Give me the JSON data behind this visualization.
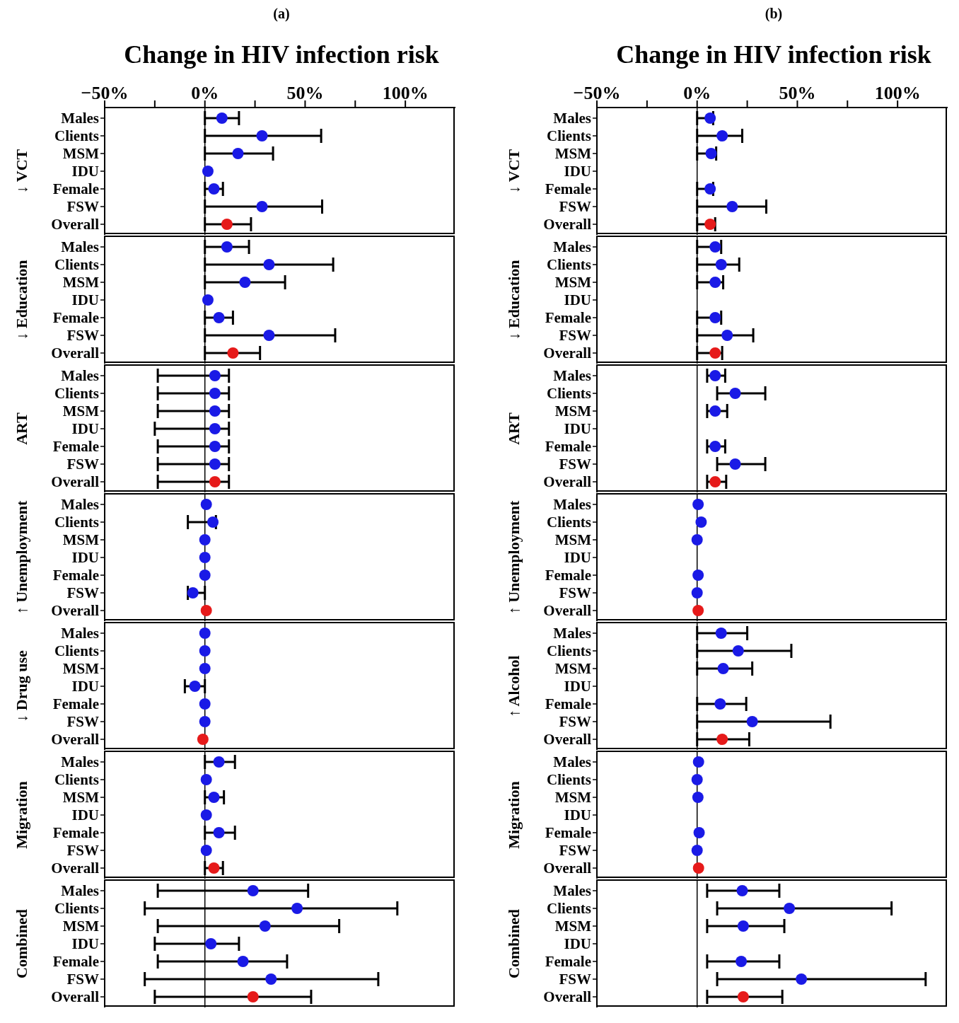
{
  "chart_data": [
    {
      "type": "scatter",
      "orientation": "horizontal",
      "title": "(a)",
      "xlabel": "Change in HIV infection risk",
      "ylabel": "↓ VCT",
      "marker": "circle",
      "categories": [
        "Males",
        "Clients",
        "MSM",
        "IDU",
        "Female",
        "FSW",
        "Overall"
      ],
      "values": [
        8.5,
        28.5,
        16.5,
        1.5,
        4.5,
        28.5,
        11
      ],
      "errors": [
        [
          0,
          17
        ],
        [
          0,
          58
        ],
        [
          0,
          34
        ],
        null,
        [
          0,
          9
        ],
        [
          0,
          58.5
        ],
        [
          0,
          23
        ]
      ],
      "colors": [
        "#1a1ae6",
        "#1a1ae6",
        "#1a1ae6",
        "#1a1ae6",
        "#1a1ae6",
        "#1a1ae6",
        "#e61a1a"
      ],
      "xlim": [
        -50,
        125
      ],
      "xticks": [
        {
          "value": -50,
          "label": "−50%"
        },
        {
          "value": -25,
          "label": null
        },
        {
          "value": 0,
          "label": "0%"
        },
        {
          "value": 25,
          "label": null
        },
        {
          "value": 50,
          "label": "50%"
        },
        {
          "value": 75,
          "label": null
        },
        {
          "value": 100,
          "label": "100%"
        }
      ],
      "ref_lines": [
        {
          "axis": "x",
          "value": 0
        }
      ]
    },
    {
      "type": "scatter",
      "orientation": "horizontal",
      "ylabel": "↓ Education",
      "marker": "circle",
      "tick_labels": "y",
      "categories": [
        "Males",
        "Clients",
        "MSM",
        "IDU",
        "Female",
        "FSW",
        "Overall"
      ],
      "values": [
        11,
        32,
        20,
        1.5,
        7,
        32,
        14
      ],
      "errors": [
        [
          0,
          22
        ],
        [
          0,
          64
        ],
        [
          0,
          40
        ],
        null,
        [
          0,
          14
        ],
        [
          0,
          65
        ],
        [
          0,
          27.5
        ]
      ],
      "colors": [
        "#1a1ae6",
        "#1a1ae6",
        "#1a1ae6",
        "#1a1ae6",
        "#1a1ae6",
        "#1a1ae6",
        "#e61a1a"
      ],
      "xlim": [
        -50,
        125
      ],
      "ref_lines": [
        {
          "axis": "x",
          "value": 0
        }
      ]
    },
    {
      "type": "scatter",
      "orientation": "horizontal",
      "ylabel": "ART",
      "marker": "circle",
      "tick_labels": "y",
      "categories": [
        "Males",
        "Clients",
        "MSM",
        "IDU",
        "Female",
        "FSW",
        "Overall"
      ],
      "values": [
        5,
        5,
        5,
        5,
        5,
        5,
        5
      ],
      "errors": [
        [
          -23.5,
          12
        ],
        [
          -23.5,
          12
        ],
        [
          -23.5,
          12
        ],
        [
          -25,
          12
        ],
        [
          -23.5,
          12
        ],
        [
          -23.5,
          12
        ],
        [
          -23.5,
          12
        ]
      ],
      "colors": [
        "#1a1ae6",
        "#1a1ae6",
        "#1a1ae6",
        "#1a1ae6",
        "#1a1ae6",
        "#1a1ae6",
        "#e61a1a"
      ],
      "xlim": [
        -50,
        125
      ],
      "ref_lines": [
        {
          "axis": "x",
          "value": 0
        }
      ]
    },
    {
      "type": "scatter",
      "orientation": "horizontal",
      "ylabel": "↑ Unemployment",
      "marker": "circle",
      "tick_labels": "y",
      "categories": [
        "Males",
        "Clients",
        "MSM",
        "IDU",
        "Female",
        "FSW",
        "Overall"
      ],
      "values": [
        0.7,
        4,
        0,
        0,
        0,
        -6,
        0.7
      ],
      "errors": [
        null,
        [
          -8.5,
          5.5
        ],
        null,
        null,
        null,
        [
          -8.5,
          0
        ],
        null
      ],
      "colors": [
        "#1a1ae6",
        "#1a1ae6",
        "#1a1ae6",
        "#1a1ae6",
        "#1a1ae6",
        "#1a1ae6",
        "#e61a1a"
      ],
      "xlim": [
        -50,
        125
      ],
      "ref_lines": [
        {
          "axis": "x",
          "value": 0
        }
      ]
    },
    {
      "type": "scatter",
      "orientation": "horizontal",
      "ylabel": "↓ Drug use",
      "marker": "circle",
      "tick_labels": "y",
      "categories": [
        "Males",
        "Clients",
        "MSM",
        "IDU",
        "Female",
        "FSW",
        "Overall"
      ],
      "values": [
        0,
        0,
        0,
        -5,
        0,
        0,
        -1
      ],
      "errors": [
        null,
        null,
        null,
        [
          -10,
          0
        ],
        null,
        null,
        null
      ],
      "colors": [
        "#1a1ae6",
        "#1a1ae6",
        "#1a1ae6",
        "#1a1ae6",
        "#1a1ae6",
        "#1a1ae6",
        "#e61a1a"
      ],
      "xlim": [
        -50,
        125
      ],
      "ref_lines": [
        {
          "axis": "x",
          "value": 0
        }
      ]
    },
    {
      "type": "scatter",
      "orientation": "horizontal",
      "ylabel": "Migration",
      "marker": "circle",
      "tick_labels": "y",
      "categories": [
        "Males",
        "Clients",
        "MSM",
        "IDU",
        "Female",
        "FSW",
        "Overall"
      ],
      "values": [
        7,
        0.7,
        4.5,
        0.7,
        7,
        0.7,
        4.5
      ],
      "errors": [
        [
          0,
          15
        ],
        null,
        [
          0,
          9.5
        ],
        null,
        [
          0,
          15
        ],
        null,
        [
          0,
          9
        ]
      ],
      "colors": [
        "#1a1ae6",
        "#1a1ae6",
        "#1a1ae6",
        "#1a1ae6",
        "#1a1ae6",
        "#1a1ae6",
        "#e61a1a"
      ],
      "xlim": [
        -50,
        125
      ],
      "ref_lines": [
        {
          "axis": "x",
          "value": 0
        }
      ]
    },
    {
      "type": "scatter",
      "orientation": "horizontal",
      "ylabel": "Combined",
      "marker": "circle",
      "tick_labels": "y",
      "categories": [
        "Males",
        "Clients",
        "MSM",
        "IDU",
        "Female",
        "FSW",
        "Overall"
      ],
      "values": [
        24,
        46,
        30,
        3,
        19,
        33,
        24
      ],
      "errors": [
        [
          -23.5,
          51.5
        ],
        [
          -30,
          96
        ],
        [
          -23.5,
          67
        ],
        [
          -25,
          17
        ],
        [
          -23.5,
          41
        ],
        [
          -30,
          86.5
        ],
        [
          -25,
          53
        ]
      ],
      "colors": [
        "#1a1ae6",
        "#1a1ae6",
        "#1a1ae6",
        "#1a1ae6",
        "#1a1ae6",
        "#1a1ae6",
        "#e61a1a"
      ],
      "xlim": [
        -50,
        125
      ],
      "ref_lines": [
        {
          "axis": "x",
          "value": 0
        }
      ]
    },
    {
      "type": "scatter",
      "orientation": "horizontal",
      "title": "(b)",
      "xlabel": "Change in HIV infection risk",
      "ylabel": "↓ VCT",
      "marker": "circle",
      "categories": [
        "Males",
        "Clients",
        "MSM",
        "IDU",
        "Female",
        "FSW",
        "Overall"
      ],
      "values": [
        6.5,
        12.5,
        7,
        null,
        6.5,
        17.5,
        6.5
      ],
      "errors": [
        [
          0,
          8
        ],
        [
          0,
          22.5
        ],
        [
          0,
          9.5
        ],
        null,
        [
          0,
          8
        ],
        [
          0,
          34.5
        ],
        [
          0,
          9
        ]
      ],
      "colors": [
        "#1a1ae6",
        "#1a1ae6",
        "#1a1ae6",
        "#1a1ae6",
        "#1a1ae6",
        "#1a1ae6",
        "#e61a1a"
      ],
      "xlim": [
        -50,
        125
      ],
      "xticks": [
        {
          "value": -50,
          "label": "−50%"
        },
        {
          "value": -25,
          "label": null
        },
        {
          "value": 0,
          "label": "0%"
        },
        {
          "value": 25,
          "label": null
        },
        {
          "value": 50,
          "label": "50%"
        },
        {
          "value": 75,
          "label": null
        },
        {
          "value": 100,
          "label": "100%"
        }
      ],
      "ref_lines": [
        {
          "axis": "x",
          "value": 0
        }
      ]
    },
    {
      "type": "scatter",
      "orientation": "horizontal",
      "ylabel": "↓ Education",
      "marker": "circle",
      "tick_labels": "y",
      "categories": [
        "Males",
        "Clients",
        "MSM",
        "IDU",
        "Female",
        "FSW",
        "Overall"
      ],
      "values": [
        9,
        12,
        9,
        null,
        9,
        15,
        9
      ],
      "errors": [
        [
          0,
          12
        ],
        [
          0,
          21
        ],
        [
          0,
          13
        ],
        null,
        [
          0,
          12
        ],
        [
          0,
          28
        ],
        [
          0,
          12.5
        ]
      ],
      "colors": [
        "#1a1ae6",
        "#1a1ae6",
        "#1a1ae6",
        "#1a1ae6",
        "#1a1ae6",
        "#1a1ae6",
        "#e61a1a"
      ],
      "xlim": [
        -50,
        125
      ],
      "ref_lines": [
        {
          "axis": "x",
          "value": 0
        }
      ]
    },
    {
      "type": "scatter",
      "orientation": "horizontal",
      "ylabel": "ART",
      "marker": "circle",
      "tick_labels": "y",
      "categories": [
        "Males",
        "Clients",
        "MSM",
        "IDU",
        "Female",
        "FSW",
        "Overall"
      ],
      "values": [
        9,
        19,
        9,
        null,
        9,
        19,
        9
      ],
      "errors": [
        [
          5,
          14
        ],
        [
          10,
          34
        ],
        [
          5,
          15
        ],
        null,
        [
          5,
          14
        ],
        [
          10,
          34
        ],
        [
          5,
          14.5
        ]
      ],
      "colors": [
        "#1a1ae6",
        "#1a1ae6",
        "#1a1ae6",
        "#1a1ae6",
        "#1a1ae6",
        "#1a1ae6",
        "#e61a1a"
      ],
      "xlim": [
        -50,
        125
      ],
      "ref_lines": [
        {
          "axis": "x",
          "value": 0
        }
      ]
    },
    {
      "type": "scatter",
      "orientation": "horizontal",
      "ylabel": "↑ Unemployment",
      "marker": "circle",
      "tick_labels": "y",
      "categories": [
        "Males",
        "Clients",
        "MSM",
        "IDU",
        "Female",
        "FSW",
        "Overall"
      ],
      "values": [
        0.5,
        2,
        0,
        null,
        0.5,
        0,
        0.5
      ],
      "colors": [
        "#1a1ae6",
        "#1a1ae6",
        "#1a1ae6",
        "#1a1ae6",
        "#1a1ae6",
        "#1a1ae6",
        "#e61a1a"
      ],
      "xlim": [
        -50,
        125
      ],
      "ref_lines": [
        {
          "axis": "x",
          "value": 0
        }
      ]
    },
    {
      "type": "scatter",
      "orientation": "horizontal",
      "ylabel": "↑ Alcohol",
      "marker": "circle",
      "tick_labels": "y",
      "categories": [
        "Males",
        "Clients",
        "MSM",
        "IDU",
        "Female",
        "FSW",
        "Overall"
      ],
      "values": [
        12,
        20.5,
        13,
        null,
        11.5,
        27.5,
        12.5
      ],
      "errors": [
        [
          0,
          25
        ],
        [
          0,
          47
        ],
        [
          0,
          27.5
        ],
        null,
        [
          0,
          24.5
        ],
        [
          0,
          66.5
        ],
        [
          0,
          26
        ]
      ],
      "colors": [
        "#1a1ae6",
        "#1a1ae6",
        "#1a1ae6",
        "#1a1ae6",
        "#1a1ae6",
        "#1a1ae6",
        "#e61a1a"
      ],
      "xlim": [
        -50,
        125
      ],
      "ref_lines": [
        {
          "axis": "x",
          "value": 0
        }
      ]
    },
    {
      "type": "scatter",
      "orientation": "horizontal",
      "ylabel": "Migration",
      "marker": "circle",
      "tick_labels": "y",
      "categories": [
        "Males",
        "Clients",
        "MSM",
        "IDU",
        "Female",
        "FSW",
        "Overall"
      ],
      "values": [
        0.7,
        0,
        0.4,
        null,
        1,
        0,
        0.7
      ],
      "colors": [
        "#1a1ae6",
        "#1a1ae6",
        "#1a1ae6",
        "#1a1ae6",
        "#1a1ae6",
        "#1a1ae6",
        "#e61a1a"
      ],
      "xlim": [
        -50,
        125
      ],
      "ref_lines": [
        {
          "axis": "x",
          "value": 0
        }
      ]
    },
    {
      "type": "scatter",
      "orientation": "horizontal",
      "ylabel": "Combined",
      "marker": "circle",
      "tick_labels": "y",
      "categories": [
        "Males",
        "Clients",
        "MSM",
        "IDU",
        "Female",
        "FSW",
        "Overall"
      ],
      "values": [
        22.5,
        46,
        23,
        null,
        22,
        52,
        23
      ],
      "errors": [
        [
          5,
          41
        ],
        [
          10,
          97
        ],
        [
          5,
          43.5
        ],
        null,
        [
          5,
          41
        ],
        [
          10,
          114
        ],
        [
          5,
          42.5
        ]
      ],
      "colors": [
        "#1a1ae6",
        "#1a1ae6",
        "#1a1ae6",
        "#1a1ae6",
        "#1a1ae6",
        "#1a1ae6",
        "#e61a1a"
      ],
      "xlim": [
        -50,
        125
      ],
      "ref_lines": [
        {
          "axis": "x",
          "value": 0
        }
      ]
    }
  ]
}
